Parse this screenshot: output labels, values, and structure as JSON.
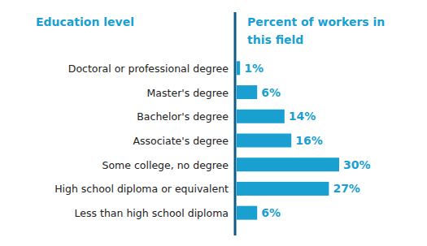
{
  "chart_data": {
    "type": "bar",
    "orientation": "horizontal",
    "category_label": "Education level",
    "value_label": "Percent of workers in this field",
    "categories": [
      "Doctoral or professional degree",
      "Master's degree",
      "Bachelor's degree",
      "Associate's degree",
      "Some college, no degree",
      "High school diploma or equivalent",
      "Less than high school diploma"
    ],
    "values": [
      1,
      6,
      14,
      16,
      30,
      27,
      6
    ],
    "value_labels": [
      "1%",
      "6%",
      "14%",
      "16%",
      "30%",
      "27%",
      "6%"
    ],
    "color": "#1a9fd1",
    "xlim": [
      0,
      30
    ],
    "data_labels": true,
    "tick_labels": "y"
  }
}
